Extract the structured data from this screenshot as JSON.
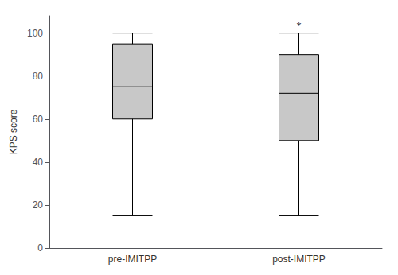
{
  "chart_data": {
    "type": "box",
    "categories": [
      "pre-IMITPP",
      "post-IMITPP"
    ],
    "values": [
      [
        15,
        60,
        75,
        95,
        100
      ],
      [
        15,
        50,
        72,
        90,
        100
      ]
    ],
    "color": "#c8c8c8",
    "ylabel": "KPS score",
    "ylim": [
      0,
      108
    ],
    "yticks": [
      0,
      20,
      40,
      60,
      80,
      100
    ],
    "grid": false,
    "annotations": [
      {
        "text": "*",
        "x": "post-IMITPP",
        "y": 101.5
      }
    ]
  }
}
